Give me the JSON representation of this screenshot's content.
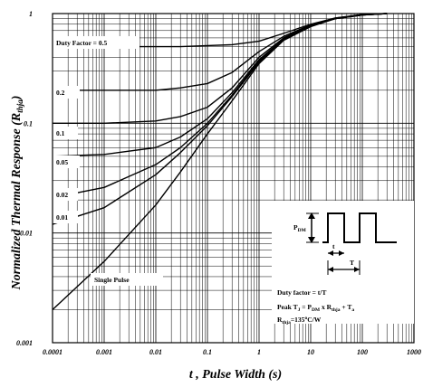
{
  "chart_data": {
    "type": "line",
    "xscale": "log",
    "yscale": "log",
    "xlim": [
      0.0001,
      1000
    ],
    "ylim": [
      0.001,
      1
    ],
    "grid": true,
    "xlabel": "t , Pulse Width (s)",
    "ylabel": "Normalized Thermal Response (R",
    "ylabel_sub": "thja",
    "ylabel_close": ")",
    "x_ticks": [
      {
        "value": 0.0001,
        "label": "0.0001"
      },
      {
        "value": 0.001,
        "label": "0.001"
      },
      {
        "value": 0.01,
        "label": "0.01"
      },
      {
        "value": 0.1,
        "label": "0.1"
      },
      {
        "value": 1,
        "label": "1"
      },
      {
        "value": 10,
        "label": "10"
      },
      {
        "value": 100,
        "label": "100"
      },
      {
        "value": 1000,
        "label": "1000"
      }
    ],
    "y_ticks": [
      {
        "value": 0.001,
        "label": "0.001"
      },
      {
        "value": 0.01,
        "label": "0.01"
      },
      {
        "value": 0.1,
        "label": "0.1"
      },
      {
        "value": 1,
        "label": "1"
      }
    ],
    "series": [
      {
        "name": "Duty Factor = 0.5",
        "x": [
          0.0001,
          0.01,
          0.03,
          0.1,
          0.3,
          1,
          3,
          10,
          30,
          100,
          300
        ],
        "y": [
          0.5,
          0.5,
          0.5,
          0.51,
          0.52,
          0.56,
          0.66,
          0.8,
          0.91,
          0.98,
          1.0
        ]
      },
      {
        "name": "0.2",
        "x": [
          0.0001,
          0.001,
          0.01,
          0.03,
          0.1,
          0.3,
          1,
          3,
          10,
          30,
          100,
          300
        ],
        "y": [
          0.2,
          0.2,
          0.2,
          0.21,
          0.23,
          0.29,
          0.45,
          0.62,
          0.79,
          0.91,
          0.98,
          1.0
        ]
      },
      {
        "name": "0.1",
        "x": [
          0.0001,
          0.001,
          0.01,
          0.03,
          0.1,
          0.3,
          1,
          3,
          10,
          30,
          100,
          300
        ],
        "y": [
          0.1,
          0.1,
          0.105,
          0.115,
          0.14,
          0.21,
          0.4,
          0.6,
          0.78,
          0.9,
          0.97,
          1.0
        ]
      },
      {
        "name": "0.05",
        "x": [
          0.0001,
          0.001,
          0.01,
          0.03,
          0.1,
          0.3,
          1,
          3,
          10,
          30,
          100,
          300
        ],
        "y": [
          0.05,
          0.052,
          0.06,
          0.075,
          0.11,
          0.19,
          0.38,
          0.59,
          0.78,
          0.9,
          0.97,
          1.0
        ]
      },
      {
        "name": "0.02",
        "x": [
          0.0001,
          0.001,
          0.01,
          0.03,
          0.1,
          0.3,
          1,
          3,
          10,
          30,
          100,
          300
        ],
        "y": [
          0.021,
          0.026,
          0.042,
          0.06,
          0.1,
          0.18,
          0.37,
          0.58,
          0.77,
          0.9,
          0.97,
          1.0
        ]
      },
      {
        "name": "0.01",
        "x": [
          0.0001,
          0.001,
          0.01,
          0.03,
          0.1,
          0.3,
          1,
          3,
          10,
          30,
          100,
          300
        ],
        "y": [
          0.012,
          0.017,
          0.034,
          0.054,
          0.095,
          0.175,
          0.36,
          0.58,
          0.77,
          0.9,
          0.97,
          1.0
        ]
      },
      {
        "name": "Single Pulse",
        "x": [
          0.0001,
          0.001,
          0.01,
          0.03,
          0.1,
          0.3,
          1,
          3,
          10,
          30,
          100,
          300
        ],
        "y": [
          0.002,
          0.0055,
          0.018,
          0.036,
          0.08,
          0.16,
          0.35,
          0.57,
          0.76,
          0.9,
          0.97,
          1.0
        ]
      }
    ],
    "inset": {
      "pdm_label": "P",
      "pdm_sub": "DM",
      "t_label": "t",
      "T_label": "T",
      "line1": "Duty factor = t/T",
      "line2_a": "Peak T",
      "line2_sub1": "J",
      "line2_b": " = P",
      "line2_sub2": "DM",
      "line2_c": " x R",
      "line2_sub3": "thja",
      "line2_d": " + T",
      "line2_sub4": "a",
      "line3_a": "R",
      "line3_sub": "thja",
      "line3_b": "=135",
      "line3_sup": "o",
      "line3_c": "C/W"
    }
  }
}
